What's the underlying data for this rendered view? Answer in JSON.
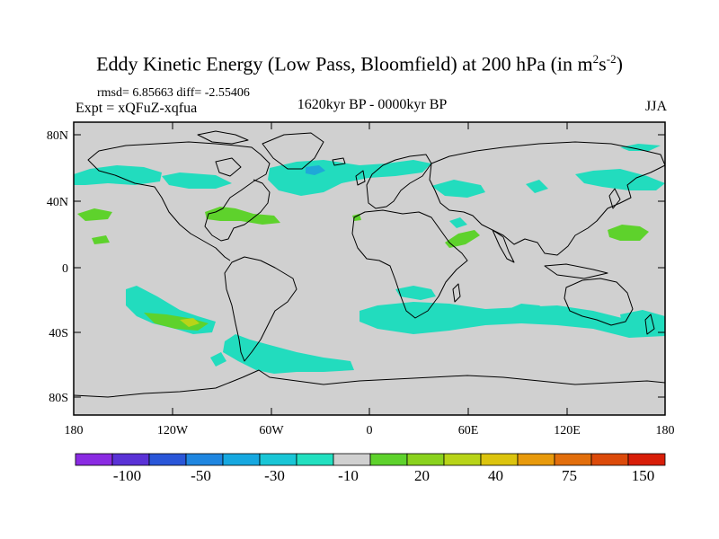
{
  "title": {
    "main": "Eddy Kinetic Energy (Low Pass, Bloomfield) at 200 hPa (in m",
    "sup1": "2",
    "mid": "s",
    "sup2": "-2",
    "end": ")"
  },
  "stats": "rmsd= 6.85663 diff= -2.55406",
  "experiment": "Expt = xQFuZ-xqfua",
  "period": "1620kyr BP - 0000kyr BP",
  "season": "JJA",
  "map": {
    "background": "#d0d0d0",
    "lat_ticks": [
      "80N",
      "40N",
      "0",
      "40S",
      "80S"
    ],
    "lon_ticks": [
      "180",
      "120W",
      "60W",
      "0",
      "60E",
      "120E",
      "180"
    ]
  },
  "colorbar": {
    "colors": [
      "#8a2be2",
      "#5a32d6",
      "#2a56d8",
      "#1f86e0",
      "#16a8e0",
      "#19c6d6",
      "#22e0c0",
      "#d0d0d0",
      "#5ed22c",
      "#8ad21e",
      "#b8d418",
      "#dcc40e",
      "#e89a0c",
      "#e26e0c",
      "#dc4a0a",
      "#d81e08"
    ],
    "labels": [
      "-100",
      "-50",
      "-30",
      "-10",
      "20",
      "40",
      "75",
      "150"
    ]
  },
  "fill_colors": {
    "teal": "#22dcbe",
    "blue": "#1fa8d8",
    "green": "#5ed22c",
    "yellowgreen": "#b8d418"
  }
}
